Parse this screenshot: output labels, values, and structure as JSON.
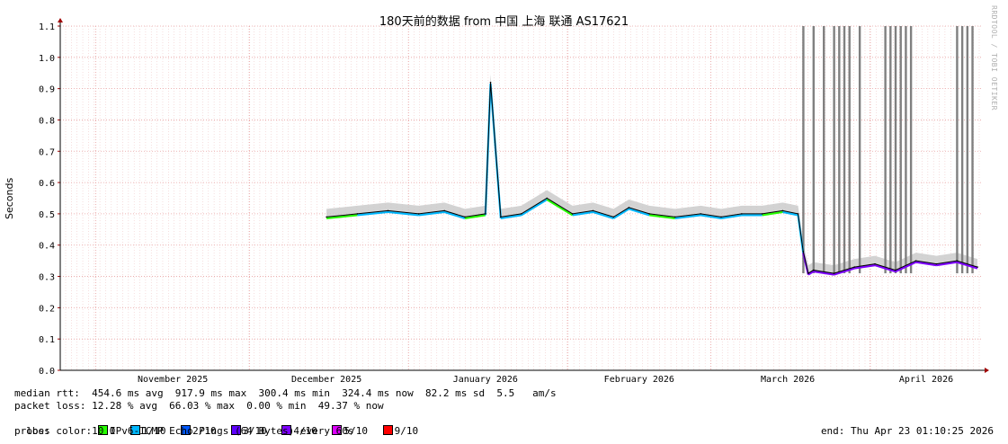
{
  "chart_data": {
    "type": "line",
    "title": "180天前的数据 from 中国 上海 联通 AS17621",
    "ylabel": "Seconds",
    "ylim": [
      0,
      1.1
    ],
    "y_ticks": [
      "0.0",
      "0.1",
      "0.2",
      "0.3",
      "0.4",
      "0.5",
      "0.6",
      "0.7",
      "0.8",
      "0.9",
      "1.0",
      "1.1"
    ],
    "x_ticks": [
      "November 2025",
      "December 2025",
      "January 2026",
      "February 2026",
      "March 2026",
      "April 2026"
    ],
    "watermark": "RRDTOOL / TOBI OETIKER",
    "grid": true,
    "series": [
      {
        "name": "median rtt",
        "x": [
          "2025-12-16",
          "2025-12-22",
          "2025-12-28",
          "2026-01-03",
          "2026-01-08",
          "2026-01-12",
          "2026-01-16",
          "2026-01-17",
          "2026-01-19",
          "2026-01-23",
          "2026-01-28",
          "2026-02-02",
          "2026-02-06",
          "2026-02-10",
          "2026-02-13",
          "2026-02-17",
          "2026-02-22",
          "2026-02-27",
          "2026-03-03",
          "2026-03-07",
          "2026-03-11",
          "2026-03-15",
          "2026-03-18",
          "2026-03-19",
          "2026-03-20",
          "2026-03-21",
          "2026-03-25",
          "2026-03-29",
          "2026-04-02",
          "2026-04-06",
          "2026-04-10",
          "2026-04-14",
          "2026-04-18",
          "2026-04-22"
        ],
        "y": [
          0.49,
          0.5,
          0.51,
          0.5,
          0.51,
          0.49,
          0.5,
          0.92,
          0.49,
          0.5,
          0.55,
          0.5,
          0.51,
          0.49,
          0.52,
          0.5,
          0.49,
          0.5,
          0.49,
          0.5,
          0.5,
          0.51,
          0.5,
          0.38,
          0.31,
          0.32,
          0.31,
          0.33,
          0.34,
          0.32,
          0.35,
          0.34,
          0.35,
          0.33
        ]
      }
    ],
    "loss_spikes": [
      "2026-03-19",
      "2026-03-21",
      "2026-03-23",
      "2026-03-25",
      "2026-03-26",
      "2026-03-27",
      "2026-03-28",
      "2026-03-30",
      "2026-04-04",
      "2026-04-05",
      "2026-04-06",
      "2026-04-07",
      "2026-04-08",
      "2026-04-09",
      "2026-04-18",
      "2026-04-19",
      "2026-04-20",
      "2026-04-21"
    ],
    "colors": {
      "rtt": "#000000",
      "smoke": "#c8c8c8",
      "loss_spike": "#808080",
      "grid": "#e8a0a0",
      "axis": "#000000",
      "arrow": "#a00000"
    }
  },
  "stats": {
    "median": "median rtt:  454.6 ms avg  917.9 ms max  300.4 ms min  324.4 ms now  82.2 ms sd  5.5   am/s",
    "loss": "packet loss: 12.28 % avg  66.03 % max  0.00 % min  49.37 % now",
    "loss_color_label": "loss color:",
    "probe": "probe:       10 IPv6-ICMP Echo Pings (64 Bytes) every 60s",
    "end": "end: Thu Apr 23 01:10:25 2026"
  },
  "loss_legend": [
    {
      "label": "0",
      "color": "#26ff00"
    },
    {
      "label": "1/10",
      "color": "#00b8ff"
    },
    {
      "label": "2/10",
      "color": "#0059ff"
    },
    {
      "label": "3/10",
      "color": "#5e00ff"
    },
    {
      "label": "4/10",
      "color": "#7e00ff"
    },
    {
      "label": "5/10",
      "color": "#dd00ff"
    },
    {
      "label": "9/10",
      "color": "#ff0000"
    }
  ]
}
